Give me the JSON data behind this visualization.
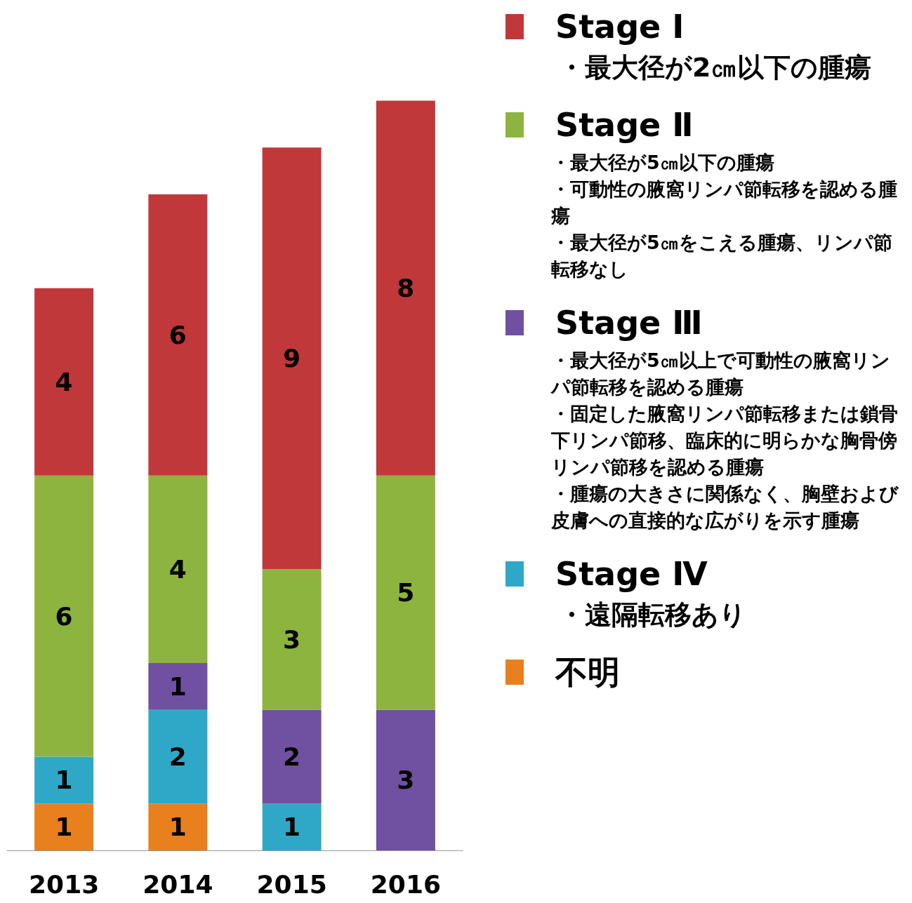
{
  "chart_data": {
    "type": "bar",
    "stacked": true,
    "data_labels": true,
    "legend": "right",
    "tick_labels": "x",
    "categories": [
      "2013",
      "2014",
      "2015",
      "2016"
    ],
    "series": [
      {
        "name": "不明",
        "color": "#e8801e",
        "values": [
          1,
          1,
          null,
          null
        ]
      },
      {
        "name": "Stage Ⅳ",
        "color": "#2fa8c8",
        "values": [
          1,
          2,
          1,
          null
        ]
      },
      {
        "name": "Stage Ⅲ",
        "color": "#7050a0",
        "values": [
          null,
          1,
          2,
          3
        ]
      },
      {
        "name": "Stage Ⅱ",
        "color": "#8db43e",
        "values": [
          6,
          4,
          3,
          5
        ]
      },
      {
        "name": "Stage Ⅰ",
        "color": "#c0383a",
        "values": [
          4,
          6,
          9,
          8
        ]
      }
    ],
    "annotations": [
      "・最大径が2㎝以下の腫瘍",
      "・最大径が5㎝以下の腫瘍・可動性の腋窩リンパ節転移を認める腫瘍・最大径が5㎝をこえる腫瘍、リンパ節転移なし",
      "・最大径が5㎝以上で可動性の腋窩リンパ節転移を認める腫瘍・固定した腋窩リンパ節転移または鎖骨下リンパ節移、臨床的に明らかな胸骨傍リンパ節移を認める腫瘍・腫瘍の大きさに関係なく、胸壁および皮膚への直接的な広がりを示す腫瘍",
      "・遠隔転移あり"
    ]
  }
}
